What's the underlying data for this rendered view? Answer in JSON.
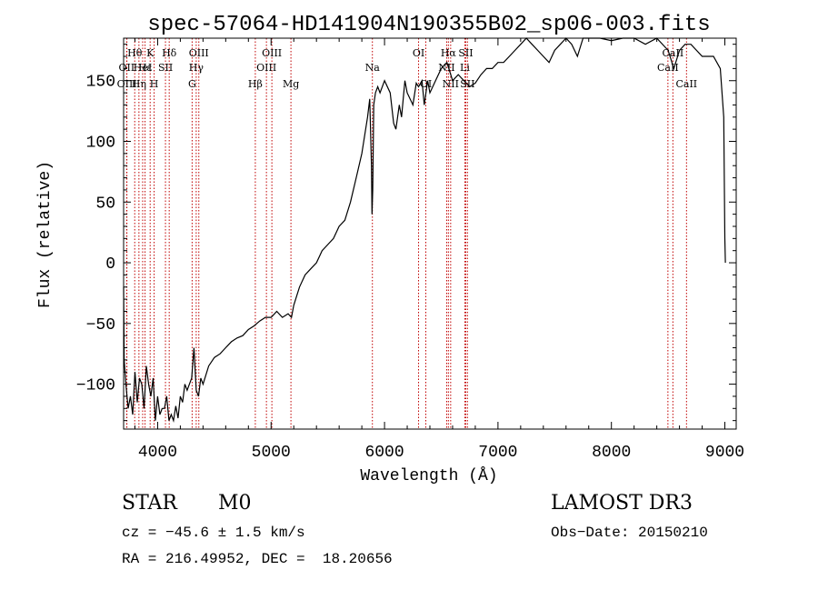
{
  "chart_data": {
    "type": "line",
    "title": "spec-57064-HD141904N190355B02_sp06-003.fits",
    "xlabel": "Wavelength (Å)",
    "ylabel": "Flux (relative)",
    "xlim": [
      3700,
      9100
    ],
    "ylim": [
      -137,
      185
    ],
    "xticks": [
      4000,
      5000,
      6000,
      7000,
      8000,
      9000
    ],
    "yticks": [
      -100,
      -50,
      0,
      50,
      100,
      150
    ],
    "grid": false,
    "series": [
      {
        "name": "flux",
        "x": [
          3700,
          3705,
          3720,
          3740,
          3760,
          3780,
          3800,
          3820,
          3840,
          3860,
          3880,
          3900,
          3920,
          3940,
          3960,
          3980,
          4000,
          4020,
          4040,
          4060,
          4080,
          4100,
          4120,
          4140,
          4160,
          4180,
          4200,
          4220,
          4240,
          4260,
          4280,
          4300,
          4320,
          4340,
          4360,
          4380,
          4400,
          4450,
          4500,
          4550,
          4600,
          4650,
          4700,
          4750,
          4800,
          4850,
          4900,
          4950,
          5000,
          5050,
          5100,
          5150,
          5180,
          5200,
          5250,
          5300,
          5350,
          5400,
          5450,
          5500,
          5550,
          5600,
          5650,
          5700,
          5750,
          5800,
          5850,
          5870,
          5885,
          5890,
          5896,
          5905,
          5920,
          5940,
          5960,
          5980,
          6000,
          6050,
          6080,
          6100,
          6130,
          6150,
          6180,
          6200,
          6250,
          6280,
          6300,
          6330,
          6350,
          6380,
          6400,
          6450,
          6500,
          6550,
          6600,
          6650,
          6700,
          6750,
          6800,
          6850,
          6900,
          6950,
          7000,
          7050,
          7100,
          7150,
          7200,
          7250,
          7300,
          7350,
          7400,
          7450,
          7500,
          7550,
          7600,
          7650,
          7700,
          7750,
          7800,
          7900,
          8000,
          8100,
          8200,
          8300,
          8400,
          8500,
          8550,
          8600,
          8650,
          8700,
          8800,
          8900,
          8960,
          8990,
          9000,
          9005
        ],
        "values": [
          -20,
          -80,
          -100,
          -120,
          -110,
          -125,
          -90,
          -115,
          -95,
          -100,
          -120,
          -85,
          -100,
          -110,
          -95,
          -130,
          -110,
          -125,
          -120,
          -120,
          -110,
          -130,
          -125,
          -130,
          -118,
          -128,
          -110,
          -115,
          -100,
          -105,
          -100,
          -95,
          -70,
          -105,
          -110,
          -95,
          -100,
          -85,
          -78,
          -75,
          -70,
          -65,
          -62,
          -60,
          -55,
          -52,
          -48,
          -45,
          -45,
          -40,
          -45,
          -42,
          -45,
          -35,
          -20,
          -10,
          -5,
          0,
          10,
          15,
          20,
          30,
          35,
          50,
          70,
          90,
          120,
          135,
          80,
          40,
          60,
          130,
          140,
          145,
          140,
          145,
          150,
          140,
          115,
          110,
          130,
          120,
          150,
          140,
          130,
          148,
          145,
          150,
          130,
          150,
          140,
          150,
          160,
          165,
          150,
          155,
          150,
          145,
          148,
          155,
          160,
          160,
          165,
          165,
          170,
          175,
          180,
          185,
          180,
          175,
          170,
          165,
          175,
          180,
          185,
          180,
          170,
          185,
          188,
          185,
          183,
          185,
          190,
          180,
          185,
          175,
          160,
          175,
          180,
          180,
          170,
          170,
          160,
          120,
          20,
          0
        ]
      }
    ],
    "lines": [
      {
        "label": "Hθ",
        "lambda": 3798,
        "row": 1
      },
      {
        "label": "OII",
        "lambda": 3727,
        "row": 2
      },
      {
        "label": "OIII",
        "lambda": 3729,
        "row": 3
      },
      {
        "label": "K",
        "lambda": 3934,
        "row": 1
      },
      {
        "label": "H",
        "lambda": 3969,
        "row": 3
      },
      {
        "label": "Hε",
        "lambda": 3889,
        "row": 2
      },
      {
        "label": "Hη",
        "lambda": 3835,
        "row": 3
      },
      {
        "label": "HeI",
        "lambda": 3868,
        "row": 2
      },
      {
        "label": "SII",
        "lambda": 4069,
        "row": 2
      },
      {
        "label": "Hδ",
        "lambda": 4102,
        "row": 1
      },
      {
        "label": "OIII",
        "lambda": 4363,
        "row": 1
      },
      {
        "label": "Hγ",
        "lambda": 4340,
        "row": 2
      },
      {
        "label": "G",
        "lambda": 4304,
        "row": 3
      },
      {
        "label": "Hβ",
        "lambda": 4861,
        "row": 3
      },
      {
        "label": "OIII",
        "lambda": 5007,
        "row": 1
      },
      {
        "label": "OIII",
        "lambda": 4959,
        "row": 2
      },
      {
        "label": "Mg",
        "lambda": 5175,
        "row": 3
      },
      {
        "label": "Na",
        "lambda": 5893,
        "row": 2
      },
      {
        "label": "OI",
        "lambda": 6300,
        "row": 1
      },
      {
        "label": "OI",
        "lambda": 6364,
        "row": 3
      },
      {
        "label": "Hα",
        "lambda": 6563,
        "row": 1
      },
      {
        "label": "NII",
        "lambda": 6548,
        "row": 2
      },
      {
        "label": "NII",
        "lambda": 6583,
        "row": 3
      },
      {
        "label": "SII",
        "lambda": 6716,
        "row": 1
      },
      {
        "label": "SII",
        "lambda": 6731,
        "row": 3
      },
      {
        "label": "Li",
        "lambda": 6708,
        "row": 2
      },
      {
        "label": "CaII",
        "lambda": 8542,
        "row": 1
      },
      {
        "label": "CaII",
        "lambda": 8498,
        "row": 2
      },
      {
        "label": "CaII",
        "lambda": 8662,
        "row": 3
      }
    ]
  },
  "info": {
    "object_class": "STAR",
    "subclass": "M0",
    "survey": "LAMOST DR3",
    "redshift": "cz = −45.6 ± 1.5 km/s",
    "obs_date": "Obs−Date: 20150210",
    "coords": "RA = 216.49952, DEC =  18.20656"
  }
}
